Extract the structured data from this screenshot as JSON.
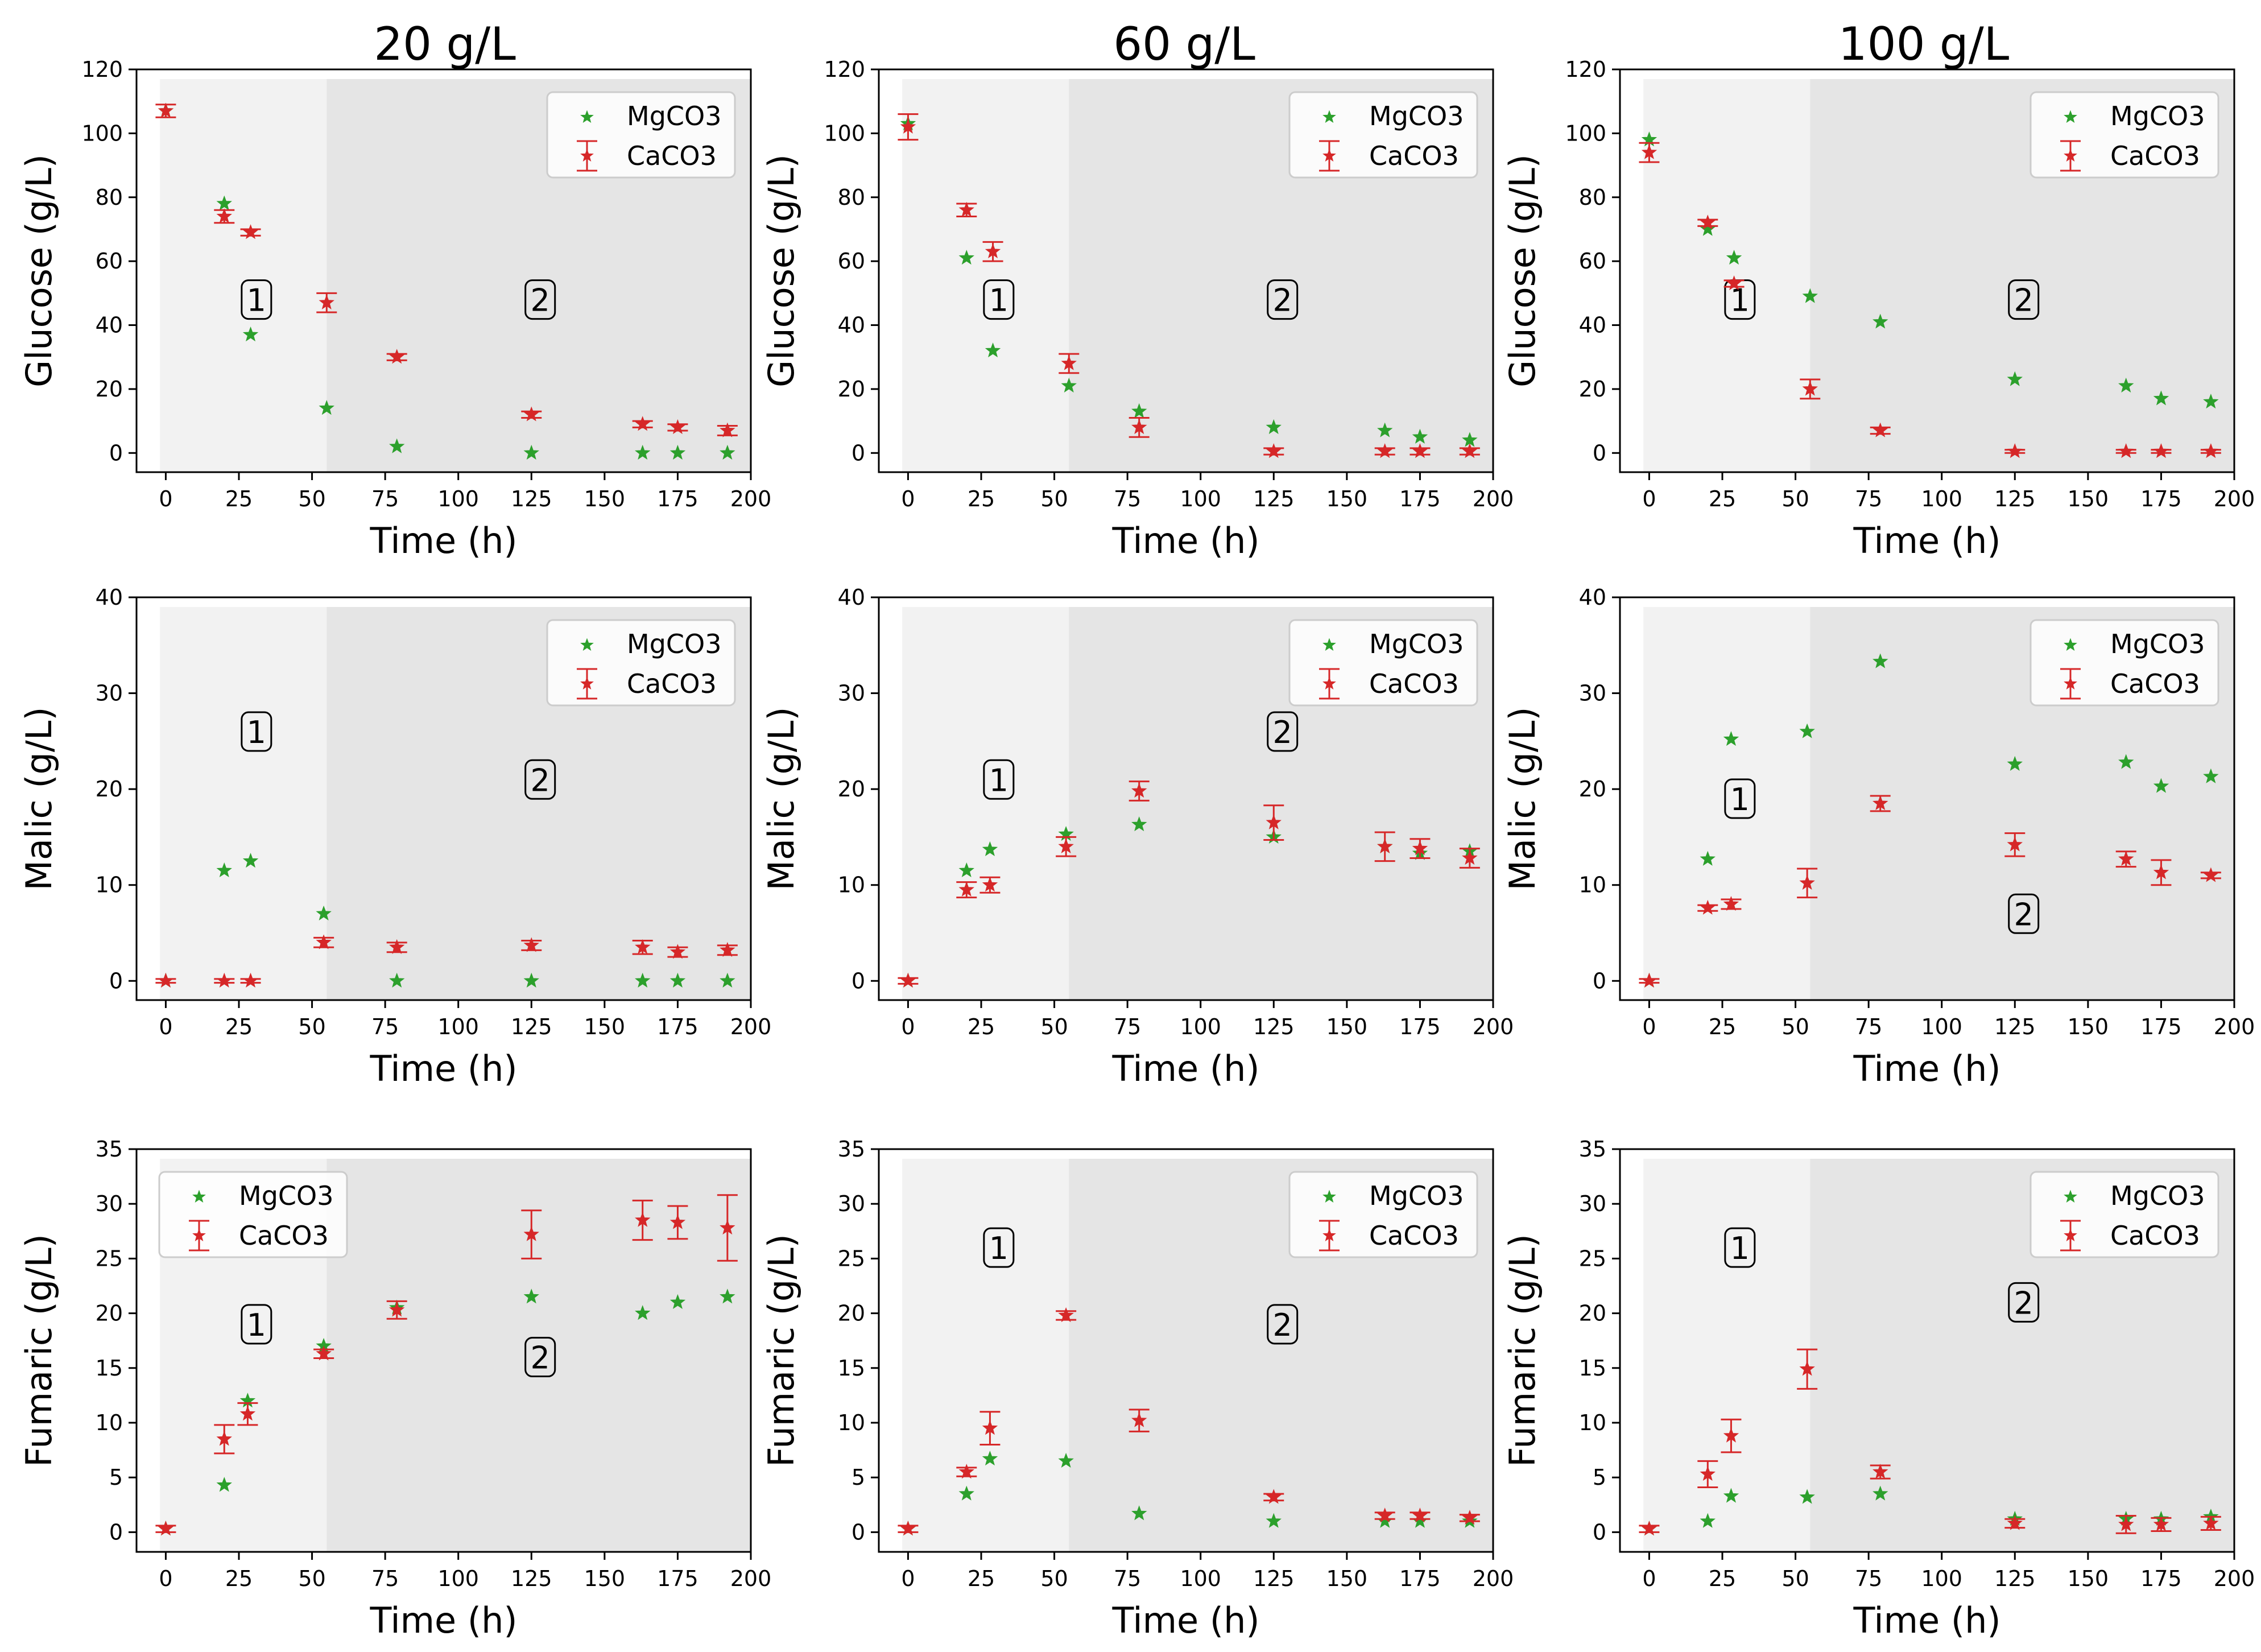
{
  "figure": {
    "column_titles": [
      "20 g/L",
      "60 g/L",
      "100 g/L"
    ],
    "series_names": [
      "MgCO3",
      "CaCO3"
    ],
    "colors": {
      "mgco3": "#2ca02c",
      "caco3": "#d62728",
      "phase1_bg": "#f2f2f2",
      "phase2_bg": "#e5e5e5",
      "axes_edge": "#000000",
      "phase_label_box": "#000000"
    },
    "phase_labels": [
      "1",
      "2"
    ],
    "phase_boundary_unit": "h"
  },
  "chart_data": [
    {
      "type": "scatter",
      "row": 0,
      "col": 0,
      "title": "20 g/L",
      "xlabel": "Time (h)",
      "ylabel": "Glucose (g/L)",
      "xlim": [
        -10,
        200
      ],
      "ylim": [
        -6,
        120
      ],
      "xticks": [
        0,
        25,
        50,
        75,
        100,
        125,
        150,
        175,
        200
      ],
      "yticks": [
        0,
        20,
        40,
        60,
        80,
        100,
        120
      ],
      "phase_boundary": 55,
      "legend": "top-right",
      "phase_label_positions": [
        [
          31,
          48
        ],
        [
          128,
          48
        ]
      ],
      "series": [
        {
          "name": "MgCO3",
          "x": [
            0,
            20,
            29,
            55,
            79,
            125,
            163,
            175,
            192
          ],
          "y": [
            107,
            78,
            37,
            14,
            2,
            0,
            0,
            0,
            0
          ]
        },
        {
          "name": "CaCO3",
          "x": [
            0,
            20,
            29,
            55,
            79,
            125,
            163,
            175,
            192
          ],
          "y": [
            107,
            74,
            69,
            47,
            30,
            12,
            9,
            8,
            7
          ],
          "err": [
            2,
            2,
            1,
            3,
            1,
            1,
            1,
            1,
            1.5
          ]
        }
      ]
    },
    {
      "type": "scatter",
      "row": 0,
      "col": 1,
      "title": "60 g/L",
      "xlabel": "Time (h)",
      "ylabel": "Glucose (g/L)",
      "xlim": [
        -10,
        200
      ],
      "ylim": [
        -6,
        120
      ],
      "xticks": [
        0,
        25,
        50,
        75,
        100,
        125,
        150,
        175,
        200
      ],
      "yticks": [
        0,
        20,
        40,
        60,
        80,
        100,
        120
      ],
      "phase_boundary": 55,
      "legend": "top-right",
      "phase_label_positions": [
        [
          31,
          48
        ],
        [
          128,
          48
        ]
      ],
      "series": [
        {
          "name": "MgCO3",
          "x": [
            0,
            20,
            29,
            55,
            79,
            125,
            163,
            175,
            192
          ],
          "y": [
            103,
            61,
            32,
            21,
            13,
            8,
            7,
            5,
            4
          ]
        },
        {
          "name": "CaCO3",
          "x": [
            0,
            20,
            29,
            55,
            79,
            125,
            163,
            175,
            192
          ],
          "y": [
            102,
            76,
            63,
            28,
            8,
            0.5,
            0.5,
            0.5,
            0.5
          ],
          "err": [
            4,
            2,
            3,
            3,
            3,
            1,
            1,
            1,
            1
          ]
        }
      ]
    },
    {
      "type": "scatter",
      "row": 0,
      "col": 2,
      "title": "100 g/L",
      "xlabel": "Time (h)",
      "ylabel": "Glucose (g/L)",
      "xlim": [
        -10,
        200
      ],
      "ylim": [
        -6,
        120
      ],
      "xticks": [
        0,
        25,
        50,
        75,
        100,
        125,
        150,
        175,
        200
      ],
      "yticks": [
        0,
        20,
        40,
        60,
        80,
        100,
        120
      ],
      "phase_boundary": 55,
      "legend": "top-right",
      "phase_label_positions": [
        [
          31,
          48
        ],
        [
          128,
          48
        ]
      ],
      "series": [
        {
          "name": "MgCO3",
          "x": [
            0,
            20,
            29,
            55,
            79,
            125,
            163,
            175,
            192
          ],
          "y": [
            98,
            70,
            61,
            49,
            41,
            23,
            21,
            17,
            16
          ]
        },
        {
          "name": "CaCO3",
          "x": [
            0,
            20,
            29,
            55,
            79,
            125,
            163,
            175,
            192
          ],
          "y": [
            94,
            72,
            53,
            20,
            7,
            0.5,
            0.5,
            0.5,
            0.5
          ],
          "err": [
            3,
            1,
            1,
            3,
            1,
            0.5,
            0.5,
            0.5,
            0.5
          ]
        }
      ]
    },
    {
      "type": "scatter",
      "row": 1,
      "col": 0,
      "title": "",
      "xlabel": "Time (h)",
      "ylabel": "Malic (g/L)",
      "xlim": [
        -10,
        200
      ],
      "ylim": [
        -2,
        40
      ],
      "xticks": [
        0,
        25,
        50,
        75,
        100,
        125,
        150,
        175,
        200
      ],
      "yticks": [
        0,
        10,
        20,
        30,
        40
      ],
      "phase_boundary": 55,
      "legend": "top-right",
      "phase_label_positions": [
        [
          31,
          26
        ],
        [
          128,
          21
        ]
      ],
      "series": [
        {
          "name": "MgCO3",
          "x": [
            0,
            20,
            29,
            54,
            79,
            125,
            163,
            175,
            192
          ],
          "y": [
            0,
            11.5,
            12.5,
            7,
            0,
            0,
            0,
            0,
            0
          ]
        },
        {
          "name": "CaCO3",
          "x": [
            0,
            20,
            29,
            54,
            79,
            125,
            163,
            175,
            192
          ],
          "y": [
            0,
            0,
            0,
            4,
            3.5,
            3.7,
            3.5,
            3,
            3.2
          ],
          "err": [
            0.2,
            0.2,
            0.2,
            0.5,
            0.5,
            0.5,
            0.7,
            0.5,
            0.5
          ]
        }
      ]
    },
    {
      "type": "scatter",
      "row": 1,
      "col": 1,
      "title": "",
      "xlabel": "Time (h)",
      "ylabel": "Malic (g/L)",
      "xlim": [
        -10,
        200
      ],
      "ylim": [
        -2,
        40
      ],
      "xticks": [
        0,
        25,
        50,
        75,
        100,
        125,
        150,
        175,
        200
      ],
      "yticks": [
        0,
        10,
        20,
        30,
        40
      ],
      "phase_boundary": 55,
      "legend": "top-right",
      "phase_label_positions": [
        [
          31,
          21
        ],
        [
          128,
          26
        ]
      ],
      "series": [
        {
          "name": "MgCO3",
          "x": [
            0,
            20,
            28,
            54,
            79,
            125,
            163,
            175,
            192
          ],
          "y": [
            0,
            11.5,
            13.7,
            15.3,
            16.3,
            15,
            14,
            13.3,
            13.5
          ]
        },
        {
          "name": "CaCO3",
          "x": [
            0,
            20,
            28,
            54,
            79,
            125,
            163,
            175,
            192
          ],
          "y": [
            0,
            9.5,
            10,
            14,
            19.8,
            16.5,
            14,
            13.8,
            12.8
          ],
          "err": [
            0.3,
            0.8,
            0.8,
            1,
            1,
            1.8,
            1.5,
            1,
            1
          ]
        }
      ]
    },
    {
      "type": "scatter",
      "row": 1,
      "col": 2,
      "title": "",
      "xlabel": "Time (h)",
      "ylabel": "Malic (g/L)",
      "xlim": [
        -10,
        200
      ],
      "ylim": [
        -2,
        40
      ],
      "xticks": [
        0,
        25,
        50,
        75,
        100,
        125,
        150,
        175,
        200
      ],
      "yticks": [
        0,
        10,
        20,
        30,
        40
      ],
      "phase_boundary": 55,
      "legend": "top-right",
      "phase_label_positions": [
        [
          31,
          19
        ],
        [
          128,
          7
        ]
      ],
      "series": [
        {
          "name": "MgCO3",
          "x": [
            0,
            20,
            28,
            54,
            79,
            125,
            163,
            175,
            192
          ],
          "y": [
            0,
            12.7,
            25.2,
            26,
            33.3,
            22.6,
            22.8,
            20.3,
            21.3
          ]
        },
        {
          "name": "CaCO3",
          "x": [
            0,
            20,
            28,
            54,
            79,
            125,
            163,
            175,
            192
          ],
          "y": [
            0,
            7.6,
            8,
            10.2,
            18.5,
            14.2,
            12.7,
            11.3,
            11
          ],
          "err": [
            0.2,
            0.3,
            0.5,
            1.5,
            0.8,
            1.2,
            0.8,
            1.3,
            0.3
          ]
        }
      ]
    },
    {
      "type": "scatter",
      "row": 2,
      "col": 0,
      "title": "",
      "xlabel": "Time (h)",
      "ylabel": "Fumaric (g/L)",
      "xlim": [
        -10,
        200
      ],
      "ylim": [
        -1.8,
        35
      ],
      "xticks": [
        0,
        25,
        50,
        75,
        100,
        125,
        150,
        175,
        200
      ],
      "yticks": [
        0,
        5,
        10,
        15,
        20,
        25,
        30,
        35
      ],
      "phase_boundary": 55,
      "legend": "top-left",
      "phase_label_positions": [
        [
          31,
          19
        ],
        [
          128,
          16
        ]
      ],
      "series": [
        {
          "name": "MgCO3",
          "x": [
            0,
            20,
            28,
            54,
            79,
            125,
            163,
            175,
            192
          ],
          "y": [
            0.3,
            4.3,
            12,
            17,
            20.5,
            21.5,
            20,
            21,
            21.5
          ]
        },
        {
          "name": "CaCO3",
          "x": [
            0,
            20,
            28,
            54,
            79,
            125,
            163,
            175,
            192
          ],
          "y": [
            0.3,
            8.5,
            10.8,
            16.3,
            20.3,
            27.2,
            28.5,
            28.3,
            27.8
          ],
          "err": [
            0.3,
            1.3,
            1,
            0.4,
            0.8,
            2.2,
            1.8,
            1.5,
            3
          ]
        }
      ]
    },
    {
      "type": "scatter",
      "row": 2,
      "col": 1,
      "title": "",
      "xlabel": "Time (h)",
      "ylabel": "Fumaric (g/L)",
      "xlim": [
        -10,
        200
      ],
      "ylim": [
        -1.8,
        35
      ],
      "xticks": [
        0,
        25,
        50,
        75,
        100,
        125,
        150,
        175,
        200
      ],
      "yticks": [
        0,
        5,
        10,
        15,
        20,
        25,
        30,
        35
      ],
      "phase_boundary": 55,
      "legend": "top-right",
      "phase_label_positions": [
        [
          31,
          26
        ],
        [
          128,
          19
        ]
      ],
      "series": [
        {
          "name": "MgCO3",
          "x": [
            0,
            20,
            28,
            54,
            79,
            125,
            163,
            175,
            192
          ],
          "y": [
            0.3,
            3.5,
            6.7,
            6.5,
            1.7,
            1,
            1,
            1,
            1
          ]
        },
        {
          "name": "CaCO3",
          "x": [
            0,
            20,
            28,
            54,
            79,
            125,
            163,
            175,
            192
          ],
          "y": [
            0.3,
            5.5,
            9.5,
            19.8,
            10.2,
            3.2,
            1.5,
            1.5,
            1.3
          ],
          "err": [
            0.3,
            0.4,
            1.5,
            0.4,
            1,
            0.3,
            0.3,
            0.3,
            0.3
          ]
        }
      ]
    },
    {
      "type": "scatter",
      "row": 2,
      "col": 2,
      "title": "",
      "xlabel": "Time (h)",
      "ylabel": "Fumaric (g/L)",
      "xlim": [
        -10,
        200
      ],
      "ylim": [
        -1.8,
        35
      ],
      "xticks": [
        0,
        25,
        50,
        75,
        100,
        125,
        150,
        175,
        200
      ],
      "yticks": [
        0,
        5,
        10,
        15,
        20,
        25,
        30,
        35
      ],
      "phase_boundary": 55,
      "legend": "top-right",
      "phase_label_positions": [
        [
          31,
          26
        ],
        [
          128,
          21
        ]
      ],
      "series": [
        {
          "name": "MgCO3",
          "x": [
            0,
            20,
            28,
            54,
            79,
            125,
            163,
            175,
            192
          ],
          "y": [
            0.3,
            1,
            3.3,
            3.2,
            3.5,
            1.2,
            1.2,
            1.2,
            1.4
          ]
        },
        {
          "name": "CaCO3",
          "x": [
            0,
            20,
            28,
            54,
            79,
            125,
            163,
            175,
            192
          ],
          "y": [
            0.3,
            5.3,
            8.8,
            14.9,
            5.5,
            0.8,
            0.7,
            0.7,
            0.8
          ],
          "err": [
            0.3,
            1.2,
            1.5,
            1.8,
            0.6,
            0.4,
            0.8,
            0.6,
            0.6
          ]
        }
      ]
    }
  ]
}
